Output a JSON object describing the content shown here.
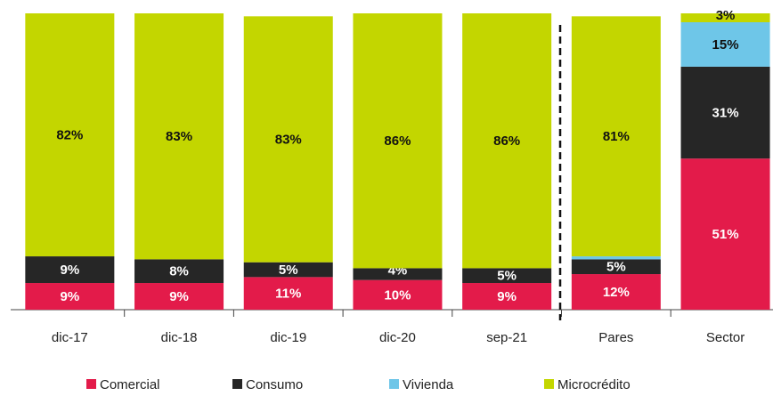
{
  "chart_data": {
    "type": "stacked_bar",
    "categories": [
      "dic-17",
      "dic-18",
      "dic-19",
      "dic-20",
      "sep-21",
      "Pares",
      "Sector"
    ],
    "series": [
      {
        "name": "Comercial",
        "color": "#e31b4a",
        "values": [
          9,
          9,
          11,
          10,
          9,
          12,
          51
        ],
        "value_labels": [
          "9%",
          "9%",
          "11%",
          "10%",
          "9%",
          "12%",
          "51%"
        ]
      },
      {
        "name": "Consumo",
        "color": "#262626",
        "values": [
          9,
          8,
          5,
          4,
          5,
          5,
          31
        ],
        "value_labels": [
          "9%",
          "8%",
          "5%",
          "4%",
          "5%",
          "5%",
          "31%"
        ]
      },
      {
        "name": "Vivienda",
        "color": "#6ec6e8",
        "values": [
          0,
          0,
          0,
          0,
          0,
          1,
          15
        ],
        "value_labels": [
          null,
          null,
          null,
          null,
          null,
          null,
          "15%"
        ]
      },
      {
        "name": "Microcrédito",
        "color": "#c3d600",
        "values": [
          82,
          83,
          83,
          86,
          86,
          81,
          3
        ],
        "value_labels": [
          "82%",
          "83%",
          "83%",
          "86%",
          "86%",
          "81%",
          "3%"
        ]
      }
    ],
    "legend": "bottom"
  }
}
